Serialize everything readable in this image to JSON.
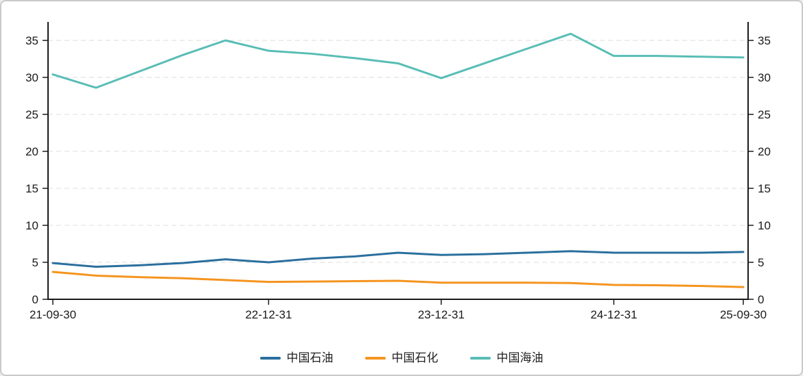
{
  "chart_data": {
    "type": "line",
    "x": [
      "21-09-30",
      "21-12-31",
      "22-03-31",
      "22-06-30",
      "22-09-30",
      "22-12-31",
      "23-03-31",
      "23-06-30",
      "23-09-30",
      "23-12-31",
      "24-03-31",
      "24-06-30",
      "24-09-30",
      "24-12-31",
      "25-03-31",
      "25-06-30",
      "25-09-30"
    ],
    "x_axis_labels": [
      "21-09-30",
      "22-12-31",
      "23-12-31",
      "24-12-31",
      "25-09-30"
    ],
    "x_axis_label_indices": [
      0,
      5,
      9,
      13,
      16
    ],
    "y_ticks": [
      0,
      5,
      10,
      15,
      20,
      25,
      30,
      35
    ],
    "ylim": [
      0,
      35
    ],
    "grid": "dashed-horizontal",
    "legend_position": "bottom-center",
    "axis_color": "#1a1a1a",
    "grid_color": "#dcdcdc",
    "label_color": "#1a1a1a",
    "series": [
      {
        "name": "中国石油",
        "color": "#2a6f9e",
        "values": [
          4.9,
          4.4,
          4.6,
          4.9,
          5.4,
          5.0,
          5.5,
          5.8,
          6.3,
          6.0,
          6.1,
          6.3,
          6.5,
          6.3,
          6.3,
          6.3,
          6.4
        ]
      },
      {
        "name": "中国石化",
        "color": "#f5941f",
        "values": [
          3.7,
          3.2,
          3.0,
          2.85,
          2.6,
          2.35,
          2.4,
          2.45,
          2.5,
          2.25,
          2.25,
          2.25,
          2.2,
          1.95,
          1.9,
          1.8,
          1.65
        ]
      },
      {
        "name": "中国海油",
        "color": "#58bdb5",
        "values": [
          30.4,
          28.6,
          30.8,
          33.0,
          35.0,
          33.6,
          33.2,
          32.6,
          31.9,
          29.9,
          31.9,
          33.9,
          35.9,
          32.9,
          32.9,
          32.8,
          32.7
        ]
      }
    ]
  }
}
